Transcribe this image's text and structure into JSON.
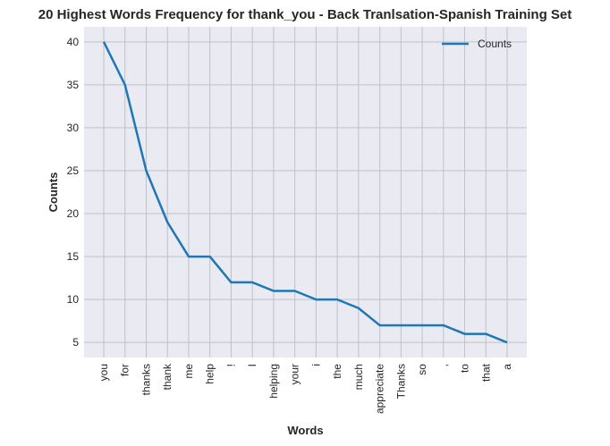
{
  "chart_data": {
    "type": "line",
    "title": "20 Highest Words Frequency for thank_you - Back Tranlsation-Spanish Training Set",
    "xlabel": "Words",
    "ylabel": "Counts",
    "categories": [
      "you",
      "for",
      "thanks",
      "thank",
      "me",
      "help",
      "!",
      "I",
      "helping",
      "your",
      "i",
      "the",
      "much",
      "appreciate",
      "Thanks",
      "so",
      ",",
      "to",
      "that",
      "a"
    ],
    "series": [
      {
        "name": "Counts",
        "values": [
          40,
          35,
          25,
          19,
          15,
          15,
          12,
          12,
          11,
          11,
          10,
          10,
          9,
          7,
          7,
          7,
          7,
          6,
          6,
          5
        ]
      }
    ],
    "ylim": [
      3.25,
      41.75
    ],
    "yticks": [
      5,
      10,
      15,
      20,
      25,
      30,
      35,
      40
    ],
    "grid": true,
    "legend": "top-right",
    "colors": {
      "line": "#1f77b4",
      "background": "#eaeaf2",
      "grid": "#c0c0c8"
    }
  }
}
